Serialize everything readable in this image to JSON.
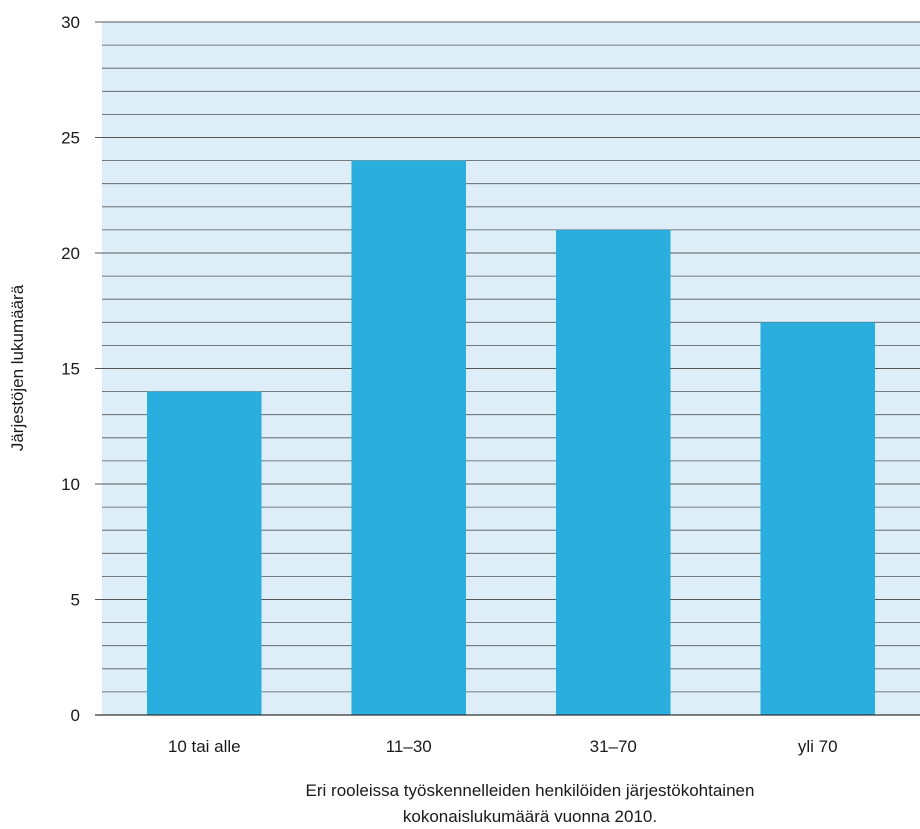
{
  "chart_data": {
    "type": "bar",
    "categories": [
      "10 tai alle",
      "11–30",
      "31–70",
      "yli 70"
    ],
    "values": [
      14,
      24,
      21,
      17
    ],
    "title": "",
    "xlabel": [
      "Eri rooleissa työskennelleiden henkilöiden järjestökohtainen",
      "kokonaislukumäärä vuonna 2010."
    ],
    "ylabel": "Järjestöjen lukumäärä",
    "ylim": [
      0,
      30
    ],
    "y_ticks": [
      "0",
      "5",
      "10",
      "15",
      "20",
      "25",
      "30"
    ],
    "minor_grid_step": 1,
    "grid": true,
    "legend": "none",
    "colors": {
      "bar": "#29aedd",
      "plot_bg": "#ddeef8",
      "grid": "#555555"
    }
  }
}
